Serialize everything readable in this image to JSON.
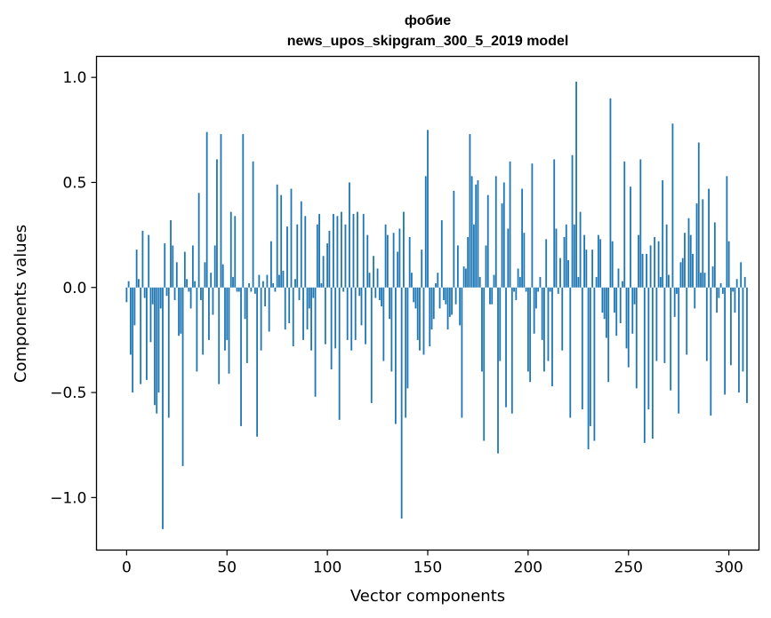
{
  "chart_data": {
    "type": "bar",
    "title": "фобие",
    "subtitle": "news_upos_skipgram_300_5_2019 model",
    "xlabel": "Vector components",
    "ylabel": "Components values",
    "xlim": [
      -15,
      315
    ],
    "ylim": [
      -1.25,
      1.1
    ],
    "xticks": [
      0,
      50,
      100,
      150,
      200,
      250,
      300
    ],
    "yticks": [
      -1.0,
      -0.5,
      0.0,
      0.5,
      1.0
    ],
    "ytick_labels": [
      "−1.0",
      "−0.5",
      "0.0",
      "0.5",
      "1.0"
    ],
    "bar_color": "#1f77b4",
    "grid": false,
    "values": [
      -0.07,
      0.03,
      -0.32,
      -0.5,
      -0.18,
      0.18,
      0.04,
      -0.46,
      0.27,
      -0.05,
      -0.44,
      0.25,
      -0.26,
      -0.08,
      -0.56,
      -0.6,
      -0.5,
      -0.1,
      -1.15,
      0.21,
      -0.04,
      -0.62,
      0.32,
      0.2,
      -0.06,
      0.12,
      -0.23,
      -0.22,
      -0.85,
      0.17,
      0.04,
      -0.02,
      -0.1,
      0.2,
      0.03,
      -0.4,
      0.45,
      -0.06,
      -0.32,
      0.12,
      0.74,
      -0.25,
      0.07,
      -0.13,
      0.2,
      0.61,
      -0.46,
      0.73,
      0.11,
      -0.3,
      -0.25,
      -0.41,
      0.36,
      0.05,
      0.34,
      -0.02,
      -0.02,
      -0.66,
      0.73,
      -0.15,
      -0.36,
      0.02,
      -0.02,
      0.6,
      -0.03,
      -0.71,
      0.06,
      -0.3,
      0.03,
      -0.09,
      0.06,
      -0.21,
      0.22,
      0.02,
      -0.02,
      0.49,
      0.06,
      0.44,
      0.08,
      -0.2,
      0.29,
      -0.17,
      0.47,
      -0.28,
      0.04,
      0.3,
      -0.06,
      0.41,
      -0.25,
      0.34,
      -0.2,
      -0.1,
      -0.3,
      -0.05,
      -0.52,
      0.3,
      0.35,
      0.02,
      0.15,
      -0.27,
      0.21,
      0.27,
      -0.39,
      0.35,
      -0.29,
      0.34,
      -0.63,
      0.36,
      -0.02,
      0.3,
      -0.25,
      0.5,
      -0.3,
      0.35,
      -0.25,
      0.36,
      -0.04,
      -0.18,
      0.35,
      -0.27,
      0.25,
      0.07,
      -0.55,
      0.15,
      -0.05,
      0.09,
      -0.06,
      -0.09,
      -0.35,
      0.3,
      0.25,
      -0.15,
      -0.4,
      0.26,
      -0.65,
      0.17,
      0.28,
      -1.1,
      0.36,
      -0.62,
      -0.48,
      0.24,
      0.07,
      -0.07,
      -0.1,
      -0.25,
      -0.3,
      0.18,
      -0.32,
      0.53,
      0.75,
      -0.28,
      -0.2,
      -0.15,
      0.02,
      0.07,
      -0.1,
      0.32,
      -0.06,
      -0.08,
      -0.2,
      -0.14,
      -0.13,
      0.46,
      -0.08,
      0.2,
      -0.18,
      -0.62,
      0.1,
      0.09,
      0.24,
      0.73,
      0.53,
      0.3,
      0.49,
      0.51,
      0.05,
      -0.4,
      -0.73,
      0.2,
      0.44,
      -0.08,
      -0.08,
      0.06,
      0.53,
      -0.79,
      -0.35,
      0.4,
      0.5,
      -0.57,
      0.28,
      0.6,
      -0.6,
      -0.02,
      -0.06,
      0.09,
      0.05,
      0.47,
      0.26,
      -0.02,
      -0.4,
      -0.45,
      0.59,
      -0.22,
      -0.1,
      -0.02,
      0.05,
      -0.25,
      -0.4,
      0.23,
      -0.35,
      -0.02,
      -0.47,
      0.61,
      0.28,
      -0.03,
      0.14,
      -0.3,
      0.24,
      0.3,
      0.13,
      -0.62,
      0.63,
      0.3,
      0.98,
      0.05,
      0.36,
      -0.58,
      0.25,
      0.18,
      -0.77,
      -0.66,
      0.18,
      -0.73,
      0.05,
      0.25,
      0.23,
      -0.12,
      -0.15,
      -0.24,
      -0.45,
      0.9,
      0.22,
      -0.12,
      -0.23,
      0.09,
      -0.17,
      0.03,
      0.6,
      -0.29,
      -0.38,
      0.48,
      -0.22,
      -0.08,
      -0.48,
      0.25,
      0.61,
      0.16,
      -0.74,
      0.16,
      -0.58,
      0.2,
      -0.72,
      0.24,
      -0.35,
      0.22,
      0.05,
      0.51,
      -0.36,
      0.3,
      0.06,
      -0.49,
      0.78,
      -0.14,
      -0.03,
      -0.6,
      0.12,
      0.14,
      0.26,
      -0.32,
      0.33,
      0.25,
      0.16,
      -0.1,
      0.4,
      0.69,
      0.07,
      0.42,
      0.07,
      -0.35,
      0.47,
      -0.61,
      0.1,
      0.31,
      -0.12,
      -0.05,
      0.02,
      -0.03,
      -0.51,
      0.53,
      0.22,
      -0.37,
      -0.02,
      -0.12,
      0.04,
      -0.5,
      0.12,
      -0.4,
      0.05,
      -0.55
    ]
  }
}
